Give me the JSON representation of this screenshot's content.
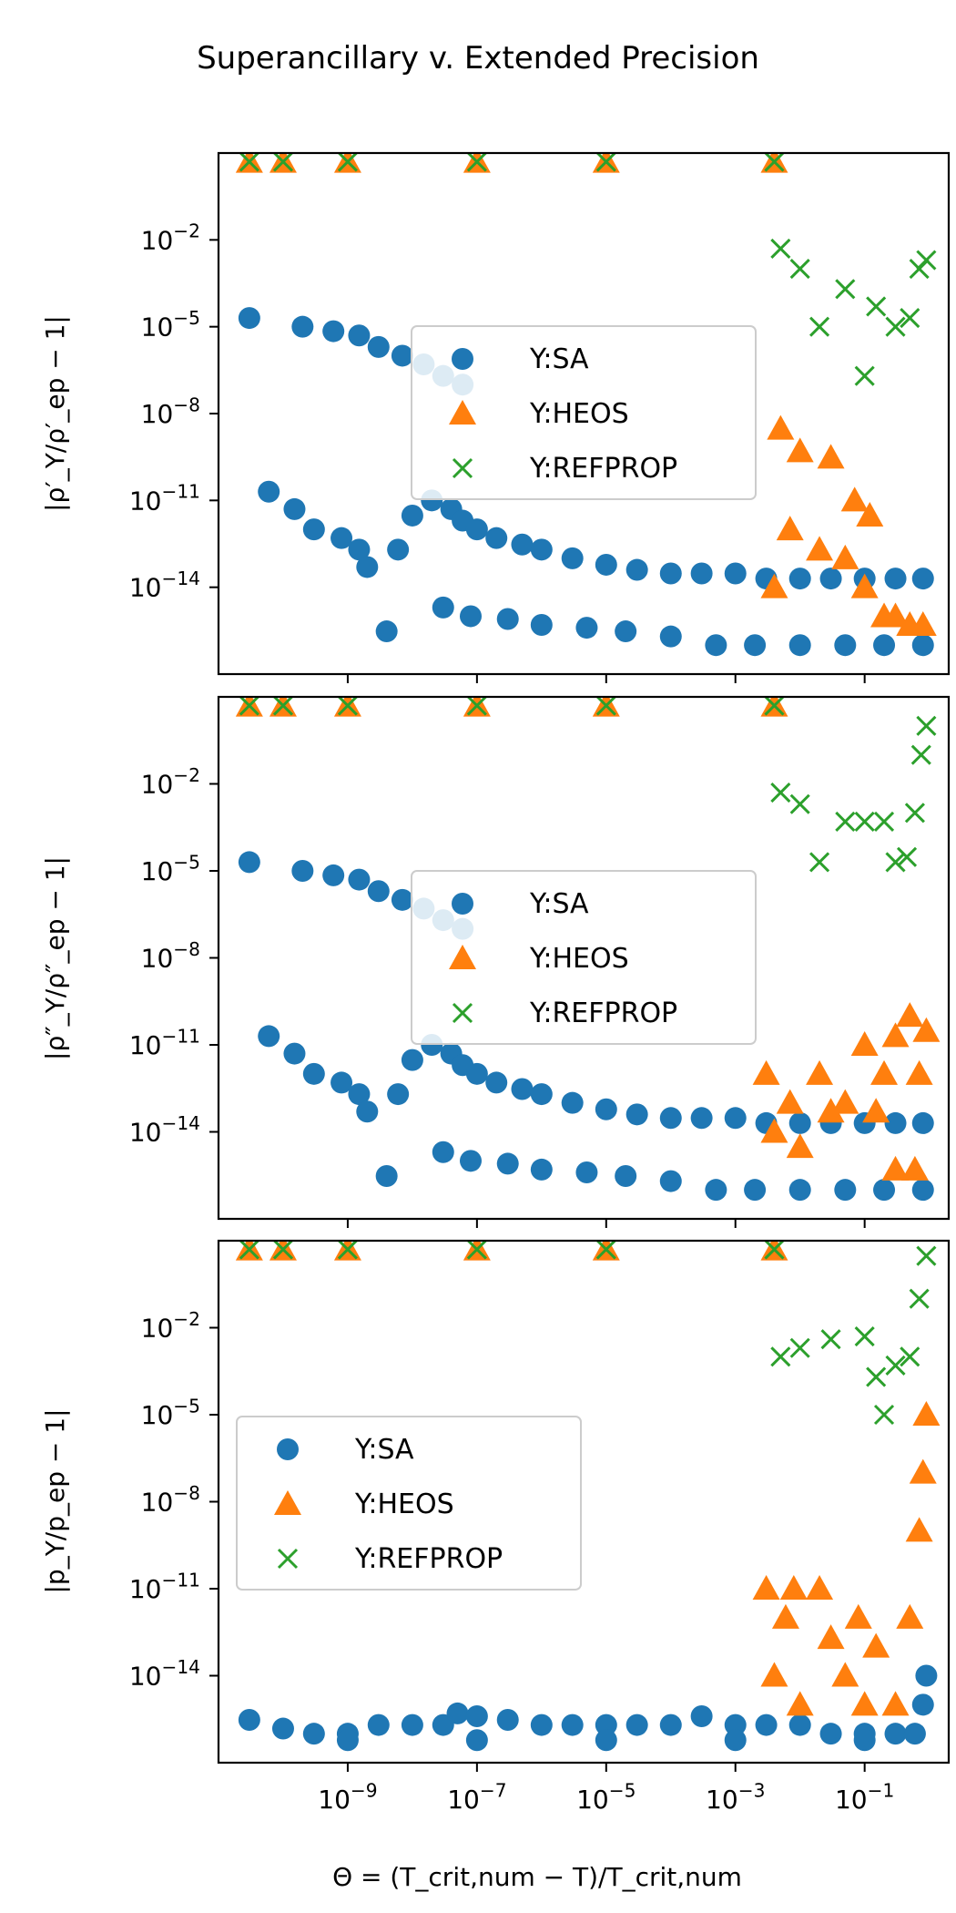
{
  "figure": {
    "title": "Superancillary v. Extended Precision",
    "xlabel": "Θ = (T_crit,num − T)/T_crit,num"
  },
  "colors": {
    "SA": "#1f77b4",
    "HEOS": "#ff7f0e",
    "REFPROP": "#2ca02c"
  },
  "chart_data": [
    {
      "type": "scatter",
      "xscale": "log",
      "yscale": "log",
      "xlim": [
        1e-11,
        2
      ],
      "ylim": [
        1e-17,
        10
      ],
      "x_ticks": [
        "10^-9",
        "10^-7",
        "10^-5",
        "10^-3",
        "10^-1"
      ],
      "y_ticks": [
        "10^-2",
        "10^-5",
        "10^-8",
        "10^-11",
        "10^-14"
      ],
      "ylabel": "|ρ′_Y/ρ′_ep − 1|",
      "legend": {
        "placement": "center",
        "entries": [
          "Y:SA",
          "Y:HEOS",
          "Y:REFPROP"
        ]
      },
      "series": [
        {
          "name": "Y:SA",
          "marker": "circle",
          "points": [
            [
              3e-11,
              2e-05
            ],
            [
              2e-10,
              1e-05
            ],
            [
              6e-10,
              7e-06
            ],
            [
              1.5e-09,
              5e-06
            ],
            [
              3e-09,
              2e-06
            ],
            [
              7e-09,
              1e-06
            ],
            [
              1.5e-08,
              5e-07
            ],
            [
              3e-08,
              2e-07
            ],
            [
              6e-08,
              1e-07
            ],
            [
              6e-11,
              2e-11
            ],
            [
              1.5e-10,
              5e-12
            ],
            [
              3e-10,
              1e-12
            ],
            [
              8e-10,
              5e-13
            ],
            [
              1.5e-09,
              2e-13
            ],
            [
              2e-09,
              5e-14
            ],
            [
              4e-09,
              3e-16
            ],
            [
              6e-09,
              2e-13
            ],
            [
              1e-08,
              3e-12
            ],
            [
              2e-08,
              1e-11
            ],
            [
              4e-08,
              5e-12
            ],
            [
              6e-08,
              2e-12
            ],
            [
              1e-07,
              1e-12
            ],
            [
              2e-07,
              5e-13
            ],
            [
              5e-07,
              3e-13
            ],
            [
              1e-06,
              2e-13
            ],
            [
              3e-06,
              1e-13
            ],
            [
              1e-05,
              6e-14
            ],
            [
              3e-05,
              4e-14
            ],
            [
              0.0001,
              3e-14
            ],
            [
              0.0003,
              3e-14
            ],
            [
              0.001,
              3e-14
            ],
            [
              0.003,
              2e-14
            ],
            [
              0.01,
              2e-14
            ],
            [
              0.03,
              2e-14
            ],
            [
              0.1,
              2e-14
            ],
            [
              0.3,
              2e-14
            ],
            [
              0.8,
              2e-14
            ],
            [
              3e-08,
              2e-15
            ],
            [
              8e-08,
              1e-15
            ],
            [
              3e-07,
              8e-16
            ],
            [
              1e-06,
              5e-16
            ],
            [
              5e-06,
              4e-16
            ],
            [
              2e-05,
              3e-16
            ],
            [
              0.0001,
              2e-16
            ],
            [
              0.0005,
              1e-16
            ],
            [
              0.002,
              1e-16
            ],
            [
              0.01,
              1e-16
            ],
            [
              0.05,
              1e-16
            ],
            [
              0.2,
              1e-16
            ],
            [
              0.8,
              1e-16
            ]
          ]
        },
        {
          "name": "Y:HEOS",
          "marker": "triangle",
          "points": [
            [
              3e-11,
              5
            ],
            [
              1e-10,
              5
            ],
            [
              1e-09,
              5
            ],
            [
              1e-07,
              5
            ],
            [
              1e-05,
              5
            ],
            [
              0.004,
              5
            ],
            [
              0.004,
              1e-14
            ],
            [
              0.005,
              3e-09
            ],
            [
              0.007,
              1e-12
            ],
            [
              0.01,
              5e-10
            ],
            [
              0.02,
              2e-13
            ],
            [
              0.03,
              3e-10
            ],
            [
              0.05,
              1e-13
            ],
            [
              0.07,
              1e-11
            ],
            [
              0.1,
              1e-14
            ],
            [
              0.12,
              3e-12
            ],
            [
              0.2,
              1e-15
            ],
            [
              0.3,
              1e-15
            ],
            [
              0.5,
              5e-16
            ],
            [
              0.8,
              5e-16
            ]
          ]
        },
        {
          "name": "Y:REFPROP",
          "marker": "x",
          "points": [
            [
              3e-11,
              5
            ],
            [
              1e-10,
              5
            ],
            [
              1e-09,
              5
            ],
            [
              1e-07,
              5
            ],
            [
              1e-05,
              5
            ],
            [
              0.004,
              5
            ],
            [
              0.005,
              0.005
            ],
            [
              0.01,
              0.001
            ],
            [
              0.02,
              1e-05
            ],
            [
              0.05,
              0.0002
            ],
            [
              0.1,
              2e-07
            ],
            [
              0.15,
              5e-05
            ],
            [
              0.3,
              1e-05
            ],
            [
              0.5,
              2e-05
            ],
            [
              0.7,
              0.001
            ],
            [
              0.9,
              0.002
            ]
          ]
        }
      ]
    },
    {
      "type": "scatter",
      "xscale": "log",
      "yscale": "log",
      "xlim": [
        1e-11,
        2
      ],
      "ylim": [
        1e-17,
        10
      ],
      "x_ticks": [
        "10^-9",
        "10^-7",
        "10^-5",
        "10^-3",
        "10^-1"
      ],
      "y_ticks": [
        "10^-2",
        "10^-5",
        "10^-8",
        "10^-11",
        "10^-14"
      ],
      "ylabel": "|ρ″_Y/ρ″_ep − 1|",
      "legend": {
        "placement": "center",
        "entries": [
          "Y:SA",
          "Y:HEOS",
          "Y:REFPROP"
        ]
      },
      "series": [
        {
          "name": "Y:SA",
          "marker": "circle",
          "points": [
            [
              3e-11,
              2e-05
            ],
            [
              2e-10,
              1e-05
            ],
            [
              6e-10,
              7e-06
            ],
            [
              1.5e-09,
              5e-06
            ],
            [
              3e-09,
              2e-06
            ],
            [
              7e-09,
              1e-06
            ],
            [
              1.5e-08,
              5e-07
            ],
            [
              3e-08,
              2e-07
            ],
            [
              6e-08,
              1e-07
            ],
            [
              6e-11,
              2e-11
            ],
            [
              1.5e-10,
              5e-12
            ],
            [
              3e-10,
              1e-12
            ],
            [
              8e-10,
              5e-13
            ],
            [
              1.5e-09,
              2e-13
            ],
            [
              2e-09,
              5e-14
            ],
            [
              4e-09,
              3e-16
            ],
            [
              6e-09,
              2e-13
            ],
            [
              1e-08,
              3e-12
            ],
            [
              2e-08,
              1e-11
            ],
            [
              4e-08,
              5e-12
            ],
            [
              6e-08,
              2e-12
            ],
            [
              1e-07,
              1e-12
            ],
            [
              2e-07,
              5e-13
            ],
            [
              5e-07,
              3e-13
            ],
            [
              1e-06,
              2e-13
            ],
            [
              3e-06,
              1e-13
            ],
            [
              1e-05,
              6e-14
            ],
            [
              3e-05,
              4e-14
            ],
            [
              0.0001,
              3e-14
            ],
            [
              0.0003,
              3e-14
            ],
            [
              0.001,
              3e-14
            ],
            [
              0.003,
              2e-14
            ],
            [
              0.01,
              2e-14
            ],
            [
              0.03,
              2e-14
            ],
            [
              0.1,
              2e-14
            ],
            [
              0.3,
              2e-14
            ],
            [
              0.8,
              2e-14
            ],
            [
              3e-08,
              2e-15
            ],
            [
              8e-08,
              1e-15
            ],
            [
              3e-07,
              8e-16
            ],
            [
              1e-06,
              5e-16
            ],
            [
              5e-06,
              4e-16
            ],
            [
              2e-05,
              3e-16
            ],
            [
              0.0001,
              2e-16
            ],
            [
              0.0005,
              1e-16
            ],
            [
              0.002,
              1e-16
            ],
            [
              0.01,
              1e-16
            ],
            [
              0.05,
              1e-16
            ],
            [
              0.2,
              1e-16
            ],
            [
              0.8,
              1e-16
            ]
          ]
        },
        {
          "name": "Y:HEOS",
          "marker": "triangle",
          "points": [
            [
              3e-11,
              5
            ],
            [
              1e-10,
              5
            ],
            [
              1e-09,
              5
            ],
            [
              1e-07,
              5
            ],
            [
              1e-05,
              5
            ],
            [
              0.004,
              5
            ],
            [
              0.003,
              1e-12
            ],
            [
              0.004,
              1e-14
            ],
            [
              0.007,
              1e-13
            ],
            [
              0.01,
              3e-15
            ],
            [
              0.02,
              1e-12
            ],
            [
              0.03,
              5e-14
            ],
            [
              0.05,
              1e-13
            ],
            [
              0.1,
              1e-11
            ],
            [
              0.15,
              5e-14
            ],
            [
              0.2,
              1e-12
            ],
            [
              0.3,
              2e-11
            ],
            [
              0.5,
              1e-10
            ],
            [
              0.7,
              1e-12
            ],
            [
              0.9,
              3e-11
            ],
            [
              0.6,
              5e-16
            ],
            [
              0.3,
              5e-16
            ]
          ]
        },
        {
          "name": "Y:REFPROP",
          "marker": "x",
          "points": [
            [
              3e-11,
              5
            ],
            [
              1e-10,
              5
            ],
            [
              1e-09,
              5
            ],
            [
              1e-07,
              5
            ],
            [
              1e-05,
              5
            ],
            [
              0.004,
              5
            ],
            [
              0.005,
              0.005
            ],
            [
              0.01,
              0.002
            ],
            [
              0.02,
              2e-05
            ],
            [
              0.05,
              0.0005
            ],
            [
              0.1,
              0.0005
            ],
            [
              0.2,
              0.0005
            ],
            [
              0.3,
              2e-05
            ],
            [
              0.45,
              3e-05
            ],
            [
              0.6,
              0.001
            ],
            [
              0.75,
              0.1
            ],
            [
              0.9,
              1
            ]
          ]
        }
      ]
    },
    {
      "type": "scatter",
      "xscale": "log",
      "yscale": "log",
      "xlim": [
        1e-11,
        2
      ],
      "ylim": [
        1e-17,
        10
      ],
      "x_ticks": [
        "10^-9",
        "10^-7",
        "10^-5",
        "10^-3",
        "10^-1"
      ],
      "y_ticks": [
        "10^-2",
        "10^-5",
        "10^-8",
        "10^-11",
        "10^-14"
      ],
      "ylabel": "|p_Y/p_ep − 1|",
      "legend": {
        "placement": "center-left",
        "entries": [
          "Y:SA",
          "Y:HEOS",
          "Y:REFPROP"
        ]
      },
      "series": [
        {
          "name": "Y:SA",
          "marker": "circle",
          "points": [
            [
              3e-11,
              3e-16
            ],
            [
              1e-10,
              1.5e-16
            ],
            [
              3e-10,
              1e-16
            ],
            [
              1e-09,
              1e-16
            ],
            [
              3e-09,
              2e-16
            ],
            [
              1e-08,
              2e-16
            ],
            [
              3e-08,
              2e-16
            ],
            [
              5e-08,
              5e-16
            ],
            [
              1e-07,
              4e-16
            ],
            [
              3e-07,
              3e-16
            ],
            [
              1e-06,
              2e-16
            ],
            [
              3e-06,
              2e-16
            ],
            [
              1e-05,
              2e-16
            ],
            [
              3e-05,
              2e-16
            ],
            [
              0.0001,
              2e-16
            ],
            [
              0.0003,
              4e-16
            ],
            [
              0.001,
              2e-16
            ],
            [
              0.003,
              2e-16
            ],
            [
              0.01,
              2e-16
            ],
            [
              0.03,
              1e-16
            ],
            [
              0.1,
              1e-16
            ],
            [
              0.3,
              1e-16
            ],
            [
              0.6,
              1e-16
            ],
            [
              0.8,
              1e-15
            ],
            [
              0.9,
              1e-14
            ],
            [
              1e-09,
              6e-17
            ],
            [
              1e-07,
              6e-17
            ],
            [
              1e-05,
              6e-17
            ],
            [
              0.001,
              6e-17
            ],
            [
              0.1,
              6e-17
            ]
          ]
        },
        {
          "name": "Y:HEOS",
          "marker": "triangle",
          "points": [
            [
              3e-11,
              5
            ],
            [
              1e-10,
              5
            ],
            [
              1e-09,
              5
            ],
            [
              1e-07,
              5
            ],
            [
              1e-05,
              5
            ],
            [
              0.004,
              5
            ],
            [
              0.003,
              1e-11
            ],
            [
              0.004,
              1e-14
            ],
            [
              0.006,
              1e-12
            ],
            [
              0.008,
              1e-11
            ],
            [
              0.01,
              1e-15
            ],
            [
              0.02,
              1e-11
            ],
            [
              0.03,
              2e-13
            ],
            [
              0.05,
              1e-14
            ],
            [
              0.08,
              1e-12
            ],
            [
              0.1,
              1e-15
            ],
            [
              0.15,
              1e-13
            ],
            [
              0.3,
              1e-15
            ],
            [
              0.5,
              1e-12
            ],
            [
              0.7,
              1e-09
            ],
            [
              0.8,
              1e-07
            ],
            [
              0.9,
              1e-05
            ]
          ]
        },
        {
          "name": "Y:REFPROP",
          "marker": "x",
          "points": [
            [
              3e-11,
              5
            ],
            [
              1e-10,
              5
            ],
            [
              1e-09,
              5
            ],
            [
              1e-07,
              5
            ],
            [
              1e-05,
              5
            ],
            [
              0.004,
              5
            ],
            [
              0.005,
              0.001
            ],
            [
              0.01,
              0.002
            ],
            [
              0.03,
              0.004
            ],
            [
              0.1,
              0.005
            ],
            [
              0.15,
              0.0002
            ],
            [
              0.2,
              1e-05
            ],
            [
              0.3,
              0.0005
            ],
            [
              0.5,
              0.001
            ],
            [
              0.7,
              0.1
            ],
            [
              0.9,
              3
            ]
          ]
        }
      ]
    }
  ]
}
